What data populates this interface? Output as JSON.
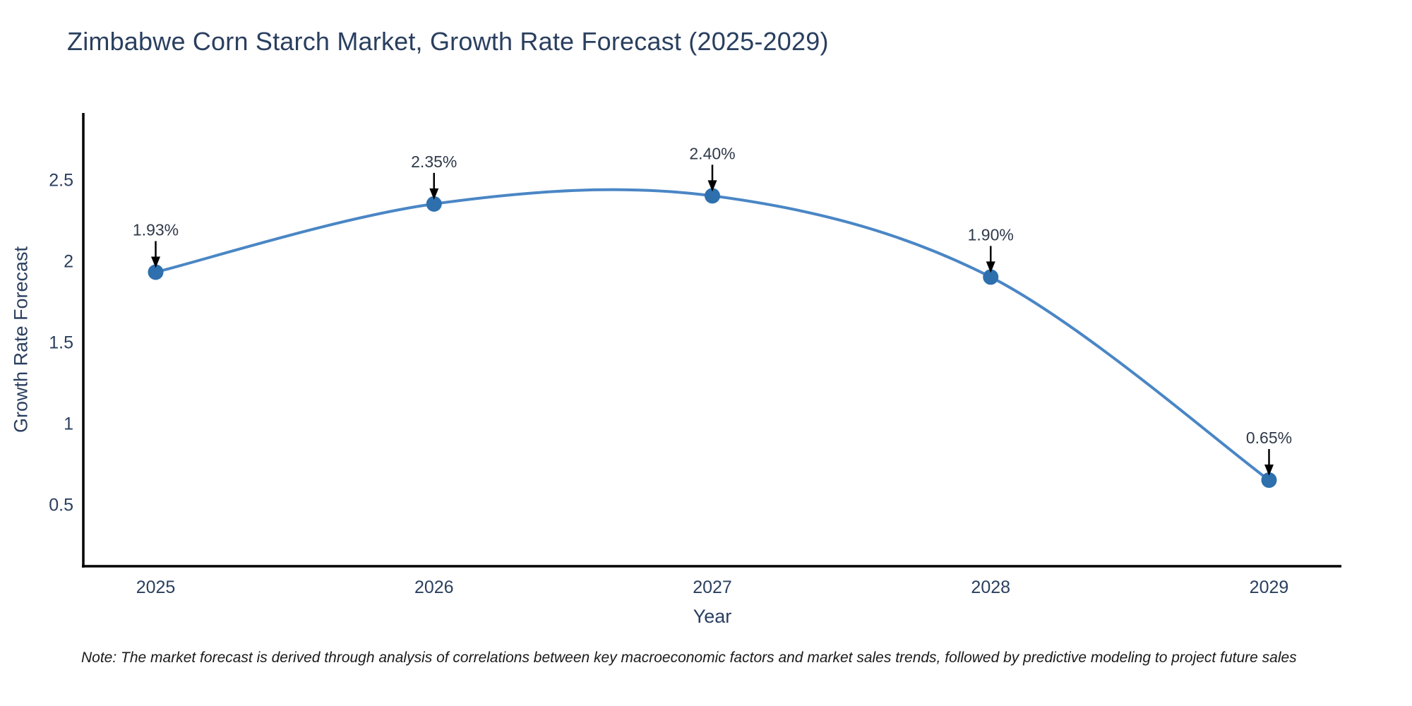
{
  "title": "Zimbabwe Corn Starch Market, Growth Rate Forecast (2025-2029)",
  "note": "Note: The market forecast is derived through analysis of correlations between key macroeconomic factors and market sales trends, followed by predictive modeling to project future sales",
  "chart_data": {
    "type": "line",
    "title": "Zimbabwe Corn Starch Market, Growth Rate Forecast (2025-2029)",
    "categories": [
      "2025",
      "2026",
      "2027",
      "2028",
      "2029"
    ],
    "x": [
      2025,
      2026,
      2027,
      2028,
      2029
    ],
    "series": [
      {
        "name": "Growth Rate Forecast",
        "values": [
          1.93,
          2.35,
          2.4,
          1.9,
          0.65
        ]
      }
    ],
    "point_labels": [
      "1.93%",
      "2.35%",
      "2.40%",
      "1.90%",
      "0.65%"
    ],
    "xlabel": "Year",
    "ylabel": "Growth Rate Forecast",
    "yticks": [
      0.5,
      1,
      1.5,
      2,
      2.5
    ],
    "ytick_labels": [
      "0.5",
      "1",
      "1.5",
      "2",
      "2.5"
    ],
    "xlim": [
      2024.74,
      2029.26
    ],
    "ylim": [
      0.12,
      2.91
    ],
    "grid": false,
    "legend": "none",
    "smooth": true,
    "colors": {
      "line": "#4a86c5",
      "marker": "#2e6fae",
      "axis_line": "#000000",
      "tick_text": "#2a3f5f",
      "annotation_text": "#2f3a4a",
      "annotation_arrow": "#000000"
    }
  }
}
